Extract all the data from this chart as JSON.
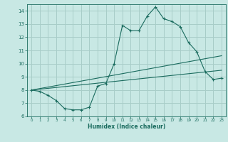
{
  "xlabel": "Humidex (Indice chaleur)",
  "ylabel": "",
  "xlim": [
    -0.5,
    23.5
  ],
  "ylim": [
    6,
    14.5
  ],
  "xticks": [
    0,
    1,
    2,
    3,
    4,
    5,
    6,
    7,
    8,
    9,
    10,
    11,
    12,
    13,
    14,
    15,
    16,
    17,
    18,
    19,
    20,
    21,
    22,
    23
  ],
  "yticks": [
    6,
    7,
    8,
    9,
    10,
    11,
    12,
    13,
    14
  ],
  "bg_color": "#c8e8e4",
  "grid_color": "#a8cdc8",
  "line_color": "#1a6b5e",
  "line1_x": [
    0,
    1,
    2,
    3,
    4,
    5,
    6,
    7,
    8,
    9,
    10,
    11,
    12,
    13,
    14,
    15,
    16,
    17,
    18,
    19,
    20,
    21,
    22,
    23
  ],
  "line1_y": [
    8.0,
    7.9,
    7.6,
    7.2,
    6.6,
    6.5,
    6.5,
    6.7,
    8.3,
    8.5,
    10.0,
    12.9,
    12.5,
    12.5,
    13.6,
    14.3,
    13.4,
    13.2,
    12.8,
    11.6,
    10.9,
    9.4,
    8.8,
    8.9
  ],
  "line2_x": [
    0,
    23
  ],
  "line2_y": [
    8.0,
    9.5
  ],
  "line3_x": [
    0,
    23
  ],
  "line3_y": [
    8.0,
    10.6
  ]
}
